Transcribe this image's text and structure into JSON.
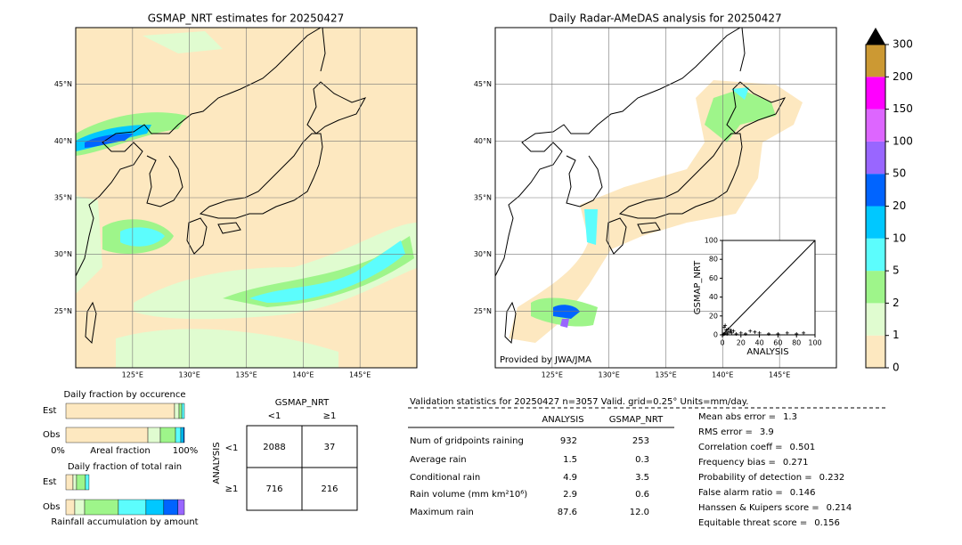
{
  "maps": [
    {
      "title": "GSMAP_NRT estimates for 20250427"
    },
    {
      "title": "Daily Radar-AMeDAS analysis for 20250427",
      "credit": "Provided by JWA/JMA"
    }
  ],
  "map_axes": {
    "xlim": [
      120,
      150
    ],
    "ylim": [
      20,
      50
    ],
    "xticks": [
      {
        "value": 125,
        "label": "125°E"
      },
      {
        "value": 130,
        "label": "130°E"
      },
      {
        "value": 135,
        "label": "135°E"
      },
      {
        "value": 140,
        "label": "140°E"
      },
      {
        "value": 145,
        "label": "145°E"
      }
    ],
    "yticks": [
      {
        "value": 25,
        "label": "25°N"
      },
      {
        "value": 30,
        "label": "30°N"
      },
      {
        "value": 35,
        "label": "35°N"
      },
      {
        "value": 40,
        "label": "40°N"
      },
      {
        "value": 45,
        "label": "45°N"
      }
    ]
  },
  "colorbar": {
    "ticks": [
      0,
      1,
      2,
      5,
      10,
      20,
      50,
      100,
      150,
      200,
      300
    ],
    "colors": [
      "#fde8c0",
      "#e0fcd0",
      "#9ef58a",
      "#5cfdfd",
      "#00c8ff",
      "#0064ff",
      "#9966ff",
      "#dd66ff",
      "#ff00ff",
      "#cc9933"
    ],
    "extend_color": "#000000"
  },
  "scatter": {
    "xlabel": "ANALYSIS",
    "ylabel": "GSMAP_NRT",
    "xlim": [
      0,
      100
    ],
    "ylim": [
      0,
      100
    ],
    "xticks": [
      0,
      20,
      40,
      60,
      80,
      100
    ],
    "yticks": [
      0,
      20,
      40,
      60,
      80,
      100
    ],
    "x": [
      1,
      2,
      3,
      5,
      8,
      10,
      12,
      15,
      4,
      6,
      20,
      25,
      30,
      35,
      40,
      50,
      60,
      70,
      80,
      87.6,
      2,
      3,
      6,
      9
    ],
    "y": [
      0.5,
      1,
      2,
      1,
      3,
      2,
      4,
      1,
      5,
      3,
      2,
      1,
      4,
      3,
      2,
      1,
      1,
      2,
      1,
      2,
      8,
      10,
      6,
      5
    ]
  },
  "occurrence": {
    "title": "Daily fraction by occurence",
    "rows": [
      {
        "label": "Est",
        "values": [
          91.7,
          3.8,
          2.3,
          2.2
        ]
      },
      {
        "label": "Obs",
        "values": [
          69.2,
          10.5,
          12.8,
          4.5,
          2.3,
          0.7
        ]
      }
    ],
    "left": "0%",
    "xlabel": "Areal fraction",
    "right": "100%"
  },
  "total_rain": {
    "title": "Daily fraction of total rain",
    "rows": [
      {
        "label": "Est",
        "values": [
          6,
          3,
          7.5,
          3
        ]
      },
      {
        "label": "Obs",
        "values": [
          7.5,
          8.3,
          28.5,
          23.3,
          15,
          12,
          5.4
        ]
      }
    ],
    "xlabel": "Rainfall accumulation by amount"
  },
  "contingency": {
    "col_title": "GSMAP_NRT",
    "col_labels": [
      "<1",
      "≥1"
    ],
    "row_title": "ANALYSIS",
    "row_labels": [
      "<1",
      "≥1"
    ],
    "cells": [
      [
        "2088",
        "37"
      ],
      [
        "716",
        "216"
      ]
    ]
  },
  "stats": {
    "header": "Validation statistics for 20250427  n=3057 Valid. grid=0.25° Units=mm/day.",
    "columns": [
      "ANALYSIS",
      "GSMAP_NRT"
    ],
    "rows": [
      {
        "label": "Num of gridpoints raining",
        "values": [
          "932",
          "253"
        ]
      },
      {
        "label": "Average rain",
        "values": [
          "1.5",
          "0.3"
        ]
      },
      {
        "label": "Conditional rain",
        "values": [
          "4.9",
          "3.5"
        ]
      },
      {
        "label": "Rain volume (mm km²10⁶)",
        "values": [
          "2.9",
          "0.6"
        ]
      },
      {
        "label": "Maximum rain",
        "values": [
          "87.6",
          "12.0"
        ]
      }
    ],
    "scores": [
      {
        "label": "Mean abs error =",
        "value": "1.3"
      },
      {
        "label": "RMS error =",
        "value": "3.9"
      },
      {
        "label": "Correlation coeff =",
        "value": "0.501"
      },
      {
        "label": "Frequency bias =",
        "value": "0.271"
      },
      {
        "label": "Probability of detection =",
        "value": "0.232"
      },
      {
        "label": "False alarm ratio =",
        "value": "0.146"
      },
      {
        "label": "Hanssen & Kuipers score =",
        "value": "0.214"
      },
      {
        "label": "Equitable threat score =",
        "value": "0.156"
      }
    ]
  }
}
